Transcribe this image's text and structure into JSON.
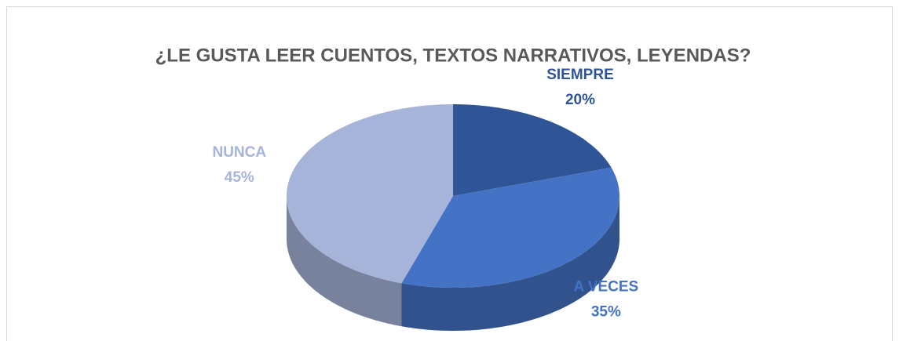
{
  "chart_data": {
    "type": "pie3d",
    "title": "¿LE GUSTA LEER CUENTOS, TEXTOS NARRATIVOS, LEYENDAS?",
    "categories": [
      "SIEMPRE",
      "A VECES",
      "NUNCA"
    ],
    "values": [
      20,
      35,
      45
    ],
    "value_labels": [
      "20%",
      "35%",
      "45%"
    ],
    "colors": [
      "#2f5597",
      "#4472c4",
      "#a6b4da"
    ]
  }
}
